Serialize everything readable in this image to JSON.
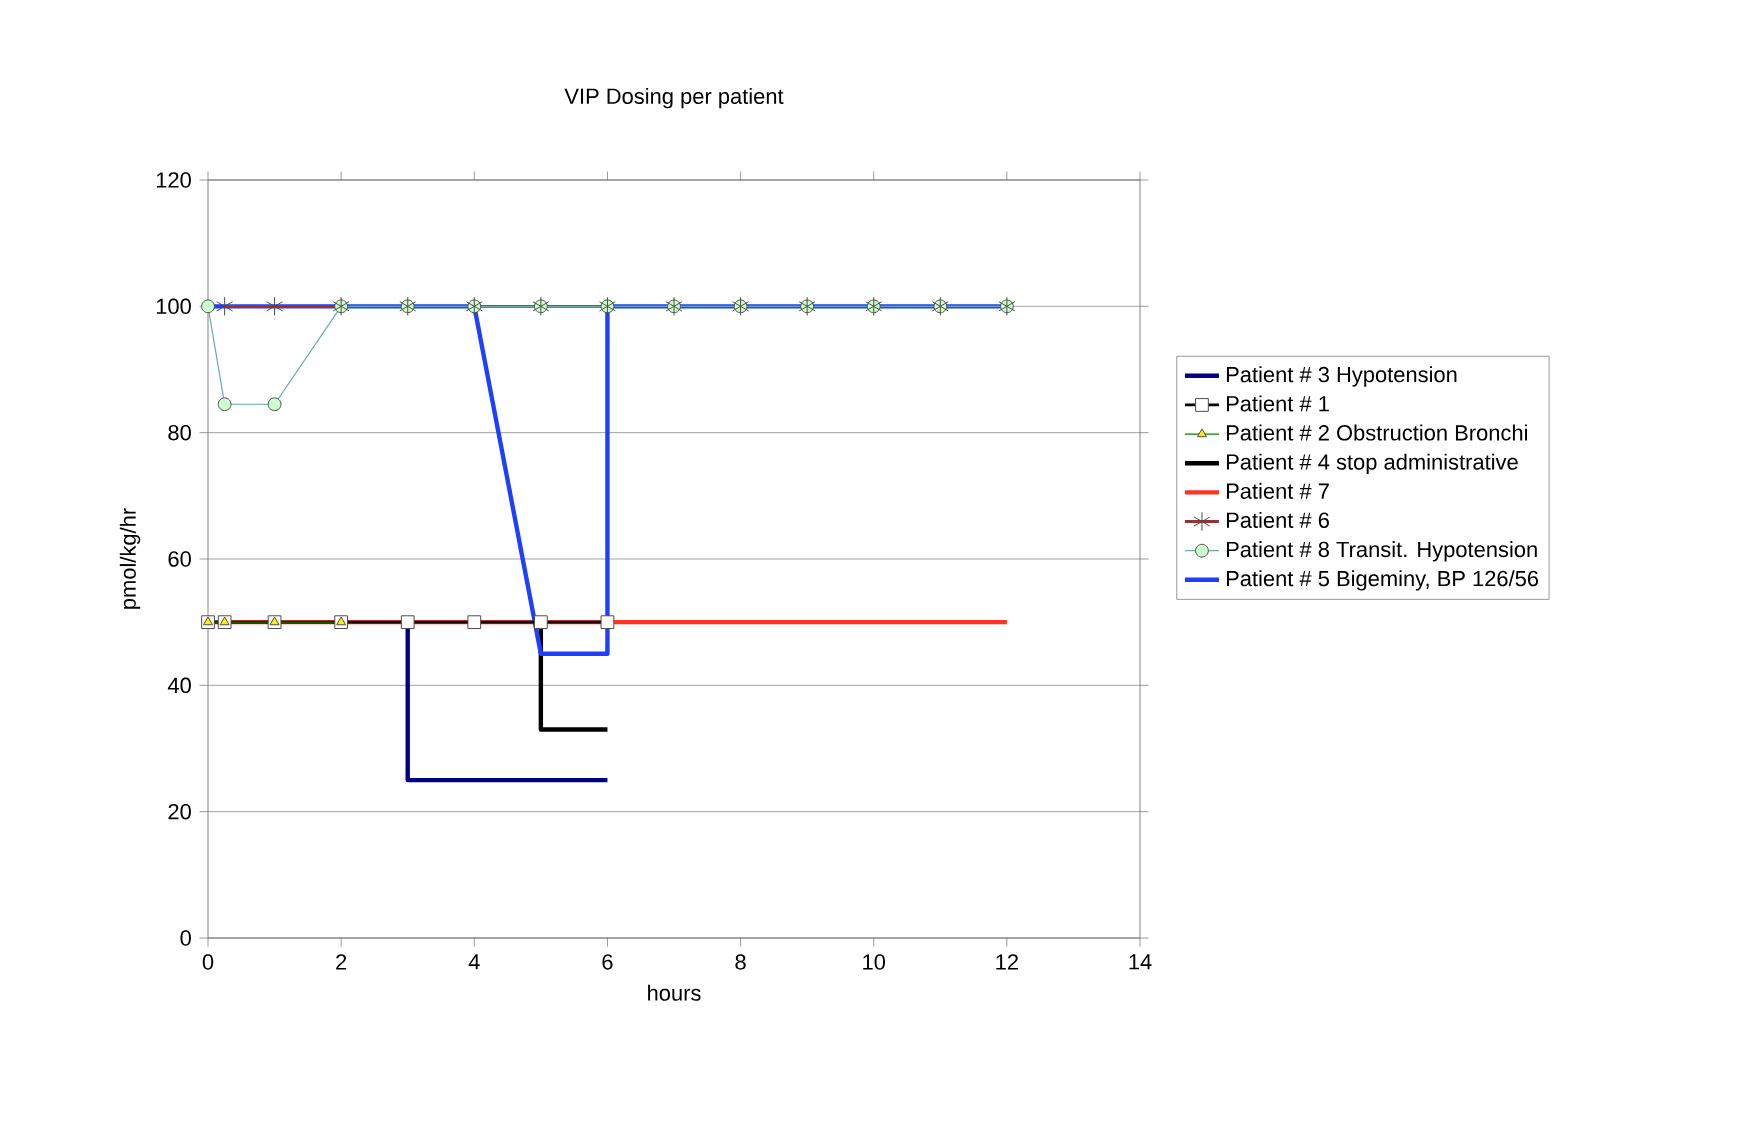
{
  "chart_data": {
    "type": "line",
    "title": "VIP Dosing per patient",
    "xlabel": "hours",
    "ylabel": "pmol/kg/hr",
    "xlim": [
      0,
      14
    ],
    "xticks": [
      0,
      2,
      4,
      6,
      8,
      10,
      12,
      14
    ],
    "ylim": [
      0,
      120
    ],
    "yticks": [
      0,
      20,
      40,
      60,
      80,
      100,
      120
    ],
    "grid": "y",
    "legend": "right",
    "line_style": "solid",
    "series": [
      {
        "name": "Patient # 3 Hypotension",
        "color": "#000080",
        "marker": "none",
        "x": [
          3,
          3,
          6
        ],
        "values": [
          50,
          25,
          25
        ]
      },
      {
        "name": "Patient # 1",
        "color": "#000000",
        "marker": "square",
        "x": [
          0,
          0.25,
          1,
          2,
          3,
          4,
          5,
          6
        ],
        "values": [
          50,
          50,
          50,
          50,
          50,
          50,
          50,
          50
        ]
      },
      {
        "name": "Patient # 2 Obstruction Bronchi",
        "color": "#008000",
        "marker": "triangle",
        "x": [
          0,
          0.25,
          1,
          2
        ],
        "values": [
          50,
          50,
          50,
          50
        ]
      },
      {
        "name": "Patient # 4 stop administrative",
        "color": "#000000",
        "marker": "none",
        "x": [
          5,
          5,
          6
        ],
        "values": [
          50,
          33,
          33
        ]
      },
      {
        "name": "Patient # 7",
        "color": "#ff3322",
        "marker": "none",
        "x": [
          0,
          12
        ],
        "values": [
          50,
          50
        ]
      },
      {
        "name": "Patient # 6",
        "color": "#993333",
        "marker": "cross",
        "x": [
          0.25,
          1,
          2,
          3,
          4,
          5,
          6,
          7,
          8,
          9,
          10,
          11,
          12
        ],
        "values": [
          100,
          100,
          100,
          100,
          100,
          100,
          100,
          100,
          100,
          100,
          100,
          100,
          100
        ]
      },
      {
        "name": "Patient # 8 Transit. Hypotension",
        "color": "#66aaaa",
        "marker": "circle",
        "x": [
          0,
          0.25,
          1,
          2,
          3,
          4,
          5,
          6,
          7,
          8,
          9,
          10,
          11,
          12
        ],
        "values": [
          100,
          84.5,
          84.5,
          100,
          100,
          100,
          100,
          100,
          100,
          100,
          100,
          100,
          100,
          100
        ]
      },
      {
        "name": "Patient # 5 Bigeminy, BP 126/56",
        "color": "#1f3fff",
        "marker": "none",
        "x": [
          0,
          4,
          5,
          6,
          6,
          12
        ],
        "values": [
          100,
          100,
          45,
          45,
          100,
          100
        ]
      }
    ]
  }
}
